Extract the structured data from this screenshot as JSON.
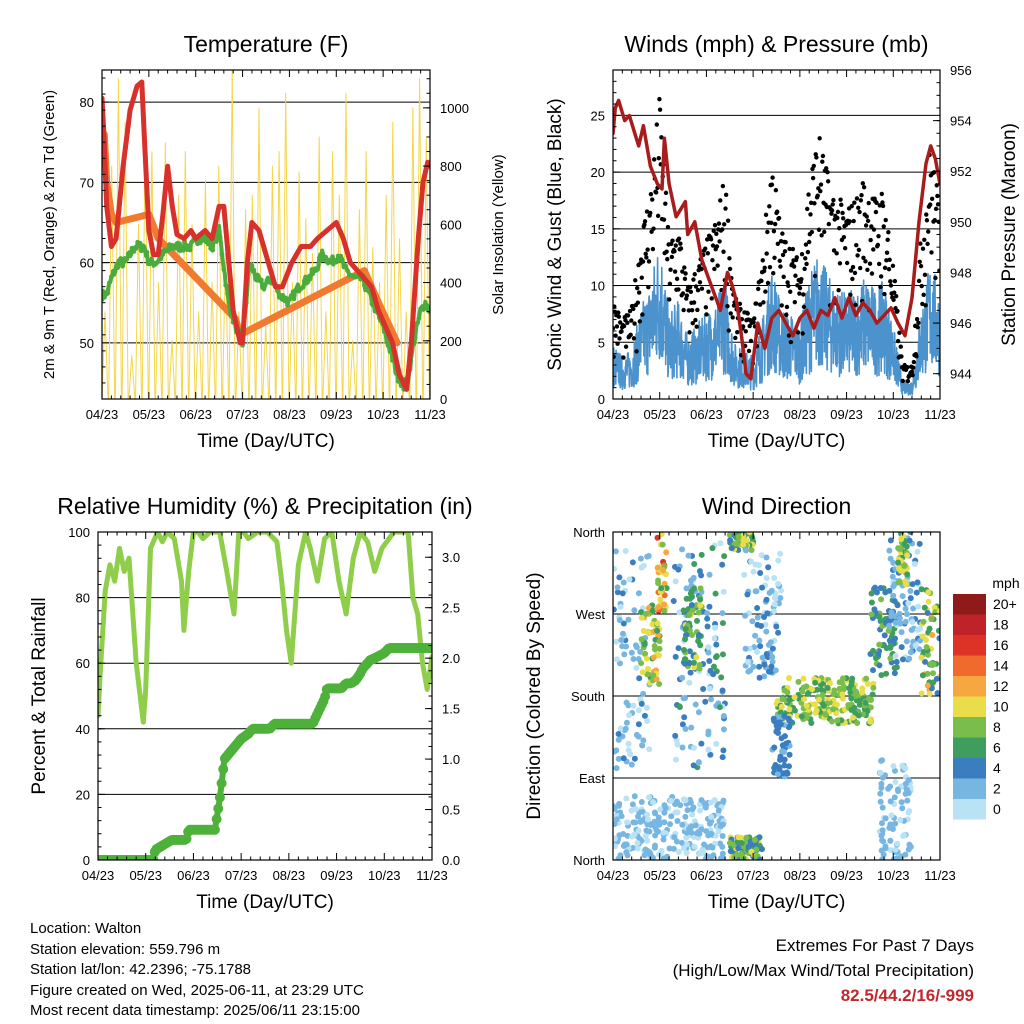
{
  "colors": {
    "temp": "#d8302a",
    "temp_9m": "#f07a30",
    "dewpoint": "#4bab3c",
    "solar": "#f5d64a",
    "gust": "#000000",
    "wind": "#4c92cc",
    "pressure": "#a81c1c",
    "rh": "#8fce4a",
    "precip": "#4db13a",
    "extremes": "#c0282d"
  },
  "speed_scale": {
    "unit": "mph",
    "labels": [
      "20+",
      "18",
      "16",
      "14",
      "12",
      "10",
      "8",
      "6",
      "4",
      "2",
      "0"
    ],
    "colors": [
      "#8e1a1a",
      "#c0222a",
      "#dd3326",
      "#ef6a2c",
      "#f7a740",
      "#e9de4a",
      "#7bbd4a",
      "#3f9e5e",
      "#3a7ec0",
      "#78b6e2",
      "#b9e2f5"
    ]
  },
  "chart_data": [
    {
      "id": "temperature",
      "type": "line",
      "title": "Temperature (F)",
      "xlabel": "Time (Day/UTC)",
      "ylabel": "2m & 9m T (Red, Orange) & 2m Td (Green)",
      "y2label": "Solar Insolation (Yellow)",
      "x_ticks": [
        "04/23",
        "05/23",
        "06/23",
        "07/23",
        "08/23",
        "09/23",
        "10/23",
        "11/23"
      ],
      "xlim": [
        0,
        7
      ],
      "ylim": [
        43,
        84
      ],
      "y_ticks": [
        50,
        60,
        70,
        80
      ],
      "y2lim": [
        0,
        1130
      ],
      "y2_ticks": [
        0,
        200,
        400,
        600,
        800,
        1000
      ],
      "grid_y": [
        50,
        60,
        70,
        80
      ],
      "series": [
        {
          "name": "2m T",
          "color_key": "temp",
          "x": [
            0,
            0.05,
            0.1,
            0.2,
            0.3,
            0.45,
            0.6,
            0.75,
            0.85,
            0.9,
            1.0,
            1.1,
            1.2,
            1.3,
            1.4,
            1.5,
            1.6,
            1.75,
            1.9,
            2.0,
            2.2,
            2.35,
            2.5,
            2.6,
            2.8,
            2.95,
            3.0,
            3.1,
            3.2,
            3.35,
            3.55,
            3.7,
            3.85,
            4.05,
            4.25,
            4.45,
            4.6,
            4.8,
            5.0,
            5.15,
            5.3,
            5.45,
            5.6,
            5.75,
            5.9,
            6.05,
            6.2,
            6.35,
            6.5,
            6.6,
            6.75,
            6.85,
            6.95,
            7.0
          ],
          "y": [
            80.5,
            75,
            67,
            62,
            63,
            72,
            79,
            82,
            82.5,
            76,
            64,
            61,
            61,
            66,
            72,
            67,
            63.5,
            63,
            64,
            63,
            64,
            63,
            67,
            67,
            54,
            50,
            50,
            60,
            65,
            64,
            60,
            57,
            57,
            60,
            62,
            62,
            63,
            64,
            65,
            63,
            60,
            59,
            58,
            57,
            54,
            52,
            50,
            46,
            44.2,
            50,
            63,
            70,
            72.5,
            72
          ]
        },
        {
          "name": "9m T",
          "color_key": "temp_9m",
          "x": [
            0.05,
            0.1,
            0.2,
            0.3,
            1.0,
            1.2,
            2.85,
            2.95,
            5.6,
            5.9,
            6.3
          ],
          "y": [
            76,
            70,
            66,
            65,
            66,
            63,
            53,
            51,
            59,
            55,
            50
          ]
        },
        {
          "name": "2m Td",
          "color_key": "dewpoint",
          "x": [
            0,
            0.1,
            0.2,
            0.35,
            0.5,
            0.7,
            0.9,
            1.0,
            1.15,
            1.3,
            1.5,
            1.7,
            1.9,
            2.05,
            2.2,
            2.35,
            2.5,
            2.7,
            2.85,
            3.0,
            3.15,
            3.3,
            3.45,
            3.6,
            3.8,
            4.0,
            4.2,
            4.4,
            4.55,
            4.7,
            4.9,
            5.05,
            5.2,
            5.4,
            5.55,
            5.7,
            5.85,
            6.0,
            6.15,
            6.3,
            6.45,
            6.55,
            6.65,
            6.8,
            6.9,
            7.0
          ],
          "y": [
            56,
            56,
            58,
            60,
            60,
            62,
            62,
            60,
            60,
            61,
            62,
            62,
            62,
            63,
            63,
            62,
            64,
            55,
            52,
            50,
            60,
            58,
            57,
            58,
            56,
            55,
            57,
            58,
            59,
            61,
            60,
            61,
            59,
            58,
            58,
            56,
            54,
            52,
            49,
            46,
            44.5,
            46,
            50,
            54,
            55,
            54
          ]
        },
        {
          "name": "Solar",
          "color_key": "solar",
          "axis": "y2",
          "daily_peaks": [
            300,
            800,
            1100,
            950,
            150,
            600,
            900,
            850,
            400,
            880,
            200,
            700,
            850,
            600,
            300,
            750,
            400,
            800,
            500,
            1130,
            300,
            650,
            700,
            1000,
            250,
            800,
            850,
            1050,
            400,
            780,
            620,
            500,
            900,
            300,
            850,
            700,
            1050,
            200,
            650,
            850,
            520,
            400,
            700,
            950,
            550,
            300,
            1000,
            1100,
            900
          ]
        }
      ]
    },
    {
      "id": "winds",
      "type": "scatter",
      "title": "Winds (mph) & Pressure (mb)",
      "xlabel": "Time (Day/UTC)",
      "ylabel": "Sonic Wind & Gust (Blue, Black)",
      "y2label": "Station Pressure (Maroon)",
      "x_ticks": [
        "04/23",
        "05/23",
        "06/23",
        "07/23",
        "08/23",
        "09/23",
        "10/23",
        "11/23"
      ],
      "xlim": [
        0,
        7
      ],
      "ylim": [
        0,
        29
      ],
      "y_ticks": [
        0,
        5,
        10,
        15,
        20,
        25
      ],
      "y2lim": [
        943,
        956
      ],
      "y2_ticks": [
        944,
        946,
        948,
        950,
        952,
        954,
        956
      ],
      "grid_y": [
        5,
        10,
        15,
        20,
        25
      ],
      "gust_envelope": {
        "x": [
          0,
          0.2,
          0.4,
          0.6,
          0.8,
          1.0,
          1.2,
          1.4,
          1.6,
          1.8,
          2.0,
          2.2,
          2.4,
          2.6,
          2.8,
          3.0,
          3.2,
          3.4,
          3.6,
          3.8,
          4.0,
          4.2,
          4.4,
          4.6,
          4.8,
          5.0,
          5.2,
          5.4,
          5.6,
          5.8,
          6.0,
          6.2,
          6.4,
          6.6,
          6.8,
          7.0
        ],
        "y": [
          9,
          7,
          8,
          15,
          19,
          27,
          14,
          16,
          10,
          12,
          14,
          16,
          20,
          9,
          8,
          7,
          13,
          22,
          15,
          14,
          12,
          20,
          24,
          20,
          18,
          17,
          18,
          20,
          18,
          19,
          12,
          3,
          3,
          15,
          23,
          17
        ]
      },
      "series": [
        {
          "name": "Pressure",
          "color_key": "pressure",
          "axis": "y2",
          "x": [
            0,
            0.05,
            0.12,
            0.25,
            0.35,
            0.45,
            0.55,
            0.65,
            0.8,
            0.95,
            1.05,
            1.1,
            1.2,
            1.35,
            1.55,
            1.6,
            1.75,
            1.9,
            2.1,
            2.2,
            2.3,
            2.45,
            2.55,
            2.65,
            2.75,
            2.85,
            2.95,
            3.1,
            3.25,
            3.4,
            3.55,
            3.7,
            3.85,
            4.0,
            4.15,
            4.3,
            4.45,
            4.6,
            4.75,
            4.9,
            5.05,
            5.2,
            5.35,
            5.5,
            5.65,
            5.8,
            5.95,
            6.1,
            6.25,
            6.4,
            6.55,
            6.7,
            6.8,
            6.9,
            7.0
          ],
          "y": [
            953.5,
            954.5,
            954.8,
            954,
            954.2,
            953.6,
            953,
            953.8,
            952.2,
            951.5,
            951.3,
            953.3,
            951.5,
            950.2,
            950.8,
            949.5,
            950,
            948.5,
            947.5,
            947,
            946.5,
            948,
            947.5,
            946.8,
            945.5,
            944,
            943.8,
            946,
            945,
            946.2,
            946.5,
            946,
            945.5,
            946.2,
            946.5,
            945.8,
            946.5,
            946.3,
            947,
            946.2,
            947,
            946.3,
            946.8,
            946.5,
            946,
            946.3,
            946.6,
            946,
            945.5,
            947,
            950,
            952.3,
            953,
            952.5,
            951.5
          ]
        }
      ]
    },
    {
      "id": "humidity",
      "type": "line",
      "title": "Relative Humidity (%) & Precipitation (in)",
      "xlabel": "Time (Day/UTC)",
      "ylabel": "Percent & Total Rainfall",
      "x_ticks": [
        "04/23",
        "05/23",
        "06/23",
        "07/23",
        "08/23",
        "09/23",
        "10/23",
        "11/23"
      ],
      "xlim": [
        0,
        7
      ],
      "ylim": [
        0,
        100
      ],
      "y_ticks": [
        0,
        20,
        40,
        60,
        80,
        100
      ],
      "y2lim": [
        0,
        3.25
      ],
      "y2_ticks": [
        0.0,
        0.5,
        1.0,
        1.5,
        2.0,
        2.5,
        3.0
      ],
      "grid_y": [
        20,
        40,
        60,
        80
      ],
      "series": [
        {
          "name": "RH",
          "color_key": "rh",
          "x": [
            0,
            0.05,
            0.15,
            0.25,
            0.35,
            0.45,
            0.55,
            0.65,
            0.8,
            0.95,
            1.0,
            1.1,
            1.25,
            1.35,
            1.45,
            1.6,
            1.75,
            1.8,
            1.9,
            2.0,
            2.1,
            2.2,
            2.35,
            2.55,
            2.7,
            2.85,
            2.95,
            3.05,
            3.15,
            3.35,
            3.55,
            3.75,
            3.85,
            3.95,
            4.05,
            4.2,
            4.35,
            4.45,
            4.6,
            4.75,
            4.9,
            5.05,
            5.2,
            5.35,
            5.5,
            5.65,
            5.8,
            5.95,
            6.2,
            6.35,
            6.5,
            6.6,
            6.7,
            6.8,
            6.9,
            7.0
          ],
          "y": [
            44,
            58,
            82,
            90,
            85,
            95,
            88,
            92,
            60,
            42,
            52,
            95,
            100,
            97,
            100,
            98,
            85,
            70,
            88,
            100,
            100,
            98,
            100,
            100,
            88,
            75,
            100,
            100,
            98,
            100,
            100,
            97,
            85,
            70,
            60,
            90,
            100,
            95,
            85,
            98,
            100,
            85,
            75,
            92,
            100,
            97,
            88,
            95,
            100,
            100,
            100,
            80,
            75,
            60,
            52,
            62
          ]
        },
        {
          "name": "Precip",
          "color_key": "precip",
          "axis": "y2",
          "x": [
            0,
            1.15,
            1.2,
            1.55,
            1.6,
            1.85,
            1.9,
            2.45,
            2.5,
            2.55,
            2.6,
            2.65,
            3.0,
            3.15,
            3.2,
            3.25,
            3.3,
            3.35,
            3.45,
            3.5,
            3.55,
            3.6,
            3.7,
            3.8,
            3.9,
            4.0,
            4.1,
            4.2,
            4.3,
            4.4,
            4.5,
            4.55,
            4.6,
            4.65,
            4.7,
            4.75,
            4.8,
            5.0,
            5.05,
            5.1,
            5.2,
            5.3,
            5.4,
            5.5,
            5.55,
            5.65,
            5.7,
            5.8,
            6.0,
            6.1,
            6.3,
            6.5,
            6.7,
            7.0
          ],
          "y": [
            0.0,
            0.0,
            0.1,
            0.2,
            0.2,
            0.2,
            0.3,
            0.3,
            0.45,
            0.6,
            0.8,
            1.0,
            1.2,
            1.25,
            1.28,
            1.3,
            1.3,
            1.3,
            1.3,
            1.3,
            1.3,
            1.3,
            1.35,
            1.35,
            1.35,
            1.35,
            1.35,
            1.35,
            1.35,
            1.35,
            1.35,
            1.4,
            1.45,
            1.5,
            1.55,
            1.6,
            1.7,
            1.7,
            1.7,
            1.7,
            1.75,
            1.75,
            1.78,
            1.85,
            1.9,
            1.95,
            1.98,
            2.0,
            2.05,
            2.1,
            2.1,
            2.1,
            2.1,
            2.1
          ]
        }
      ]
    },
    {
      "id": "wind_direction",
      "type": "scatter",
      "title": "Wind Direction",
      "xlabel": "Time (Day/UTC)",
      "ylabel": "Direction (Colored By Speed)",
      "x_ticks": [
        "04/23",
        "05/23",
        "06/23",
        "07/23",
        "08/23",
        "09/23",
        "10/23",
        "11/23"
      ],
      "xlim": [
        0,
        7
      ],
      "ylim": [
        0,
        360
      ],
      "y_tick_labels": [
        "North",
        "East",
        "South",
        "West",
        "North"
      ],
      "y_tick_values": [
        0,
        90,
        180,
        270,
        360
      ],
      "grid_y": [
        90,
        180,
        270
      ],
      "clusters": [
        {
          "x0": 0.0,
          "x1": 0.8,
          "d0": 100,
          "d1": 340,
          "s0": 0,
          "s1": 4
        },
        {
          "x0": 0.6,
          "x1": 1.0,
          "d0": 190,
          "d1": 280,
          "s0": 5,
          "s1": 12
        },
        {
          "x0": 0.95,
          "x1": 1.15,
          "d0": 270,
          "d1": 360,
          "s0": 6,
          "s1": 16
        },
        {
          "x0": 1.3,
          "x1": 2.4,
          "d0": 100,
          "d1": 350,
          "s0": 0,
          "s1": 6
        },
        {
          "x0": 1.5,
          "x1": 1.9,
          "d0": 210,
          "d1": 300,
          "s0": 4,
          "s1": 10
        },
        {
          "x0": 0.0,
          "x1": 2.4,
          "d0": 0,
          "d1": 70,
          "s0": 0,
          "s1": 3
        },
        {
          "x0": 2.5,
          "x1": 3.0,
          "d0": 340,
          "d1": 360,
          "s0": 4,
          "s1": 10
        },
        {
          "x0": 2.8,
          "x1": 3.6,
          "d0": 200,
          "d1": 340,
          "s0": 0,
          "s1": 4
        },
        {
          "x0": 2.5,
          "x1": 3.2,
          "d0": 0,
          "d1": 25,
          "s0": 3,
          "s1": 10
        },
        {
          "x0": 3.5,
          "x1": 5.6,
          "d0": 150,
          "d1": 200,
          "s0": 5,
          "s1": 11
        },
        {
          "x0": 3.4,
          "x1": 3.8,
          "d0": 90,
          "d1": 160,
          "s0": 2,
          "s1": 5
        },
        {
          "x0": 5.5,
          "x1": 6.1,
          "d0": 200,
          "d1": 300,
          "s0": 3,
          "s1": 8
        },
        {
          "x0": 5.7,
          "x1": 6.4,
          "d0": 0,
          "d1": 110,
          "s0": 0,
          "s1": 3
        },
        {
          "x0": 5.9,
          "x1": 6.6,
          "d0": 220,
          "d1": 360,
          "s0": 0,
          "s1": 4
        },
        {
          "x0": 6.1,
          "x1": 6.3,
          "d0": 300,
          "d1": 360,
          "s0": 6,
          "s1": 12
        },
        {
          "x0": 6.6,
          "x1": 7.0,
          "d0": 180,
          "d1": 300,
          "s0": 4,
          "s1": 12
        }
      ]
    }
  ],
  "info": {
    "location": "Location: Walton",
    "elevation": "Station elevation: 559.796 m",
    "latlon": "Station lat/lon: 42.2396; -75.1788",
    "created": "Figure created on Wed, 2025-06-11, at 23:29 UTC",
    "recent": "Most recent data timestamp: 2025/06/11 23:15:00"
  },
  "extremes": {
    "title": "Extremes For Past 7 Days",
    "subtitle": "(High/Low/Max Wind/Total Precipitation)",
    "values": "82.5/44.2/16/-999"
  }
}
